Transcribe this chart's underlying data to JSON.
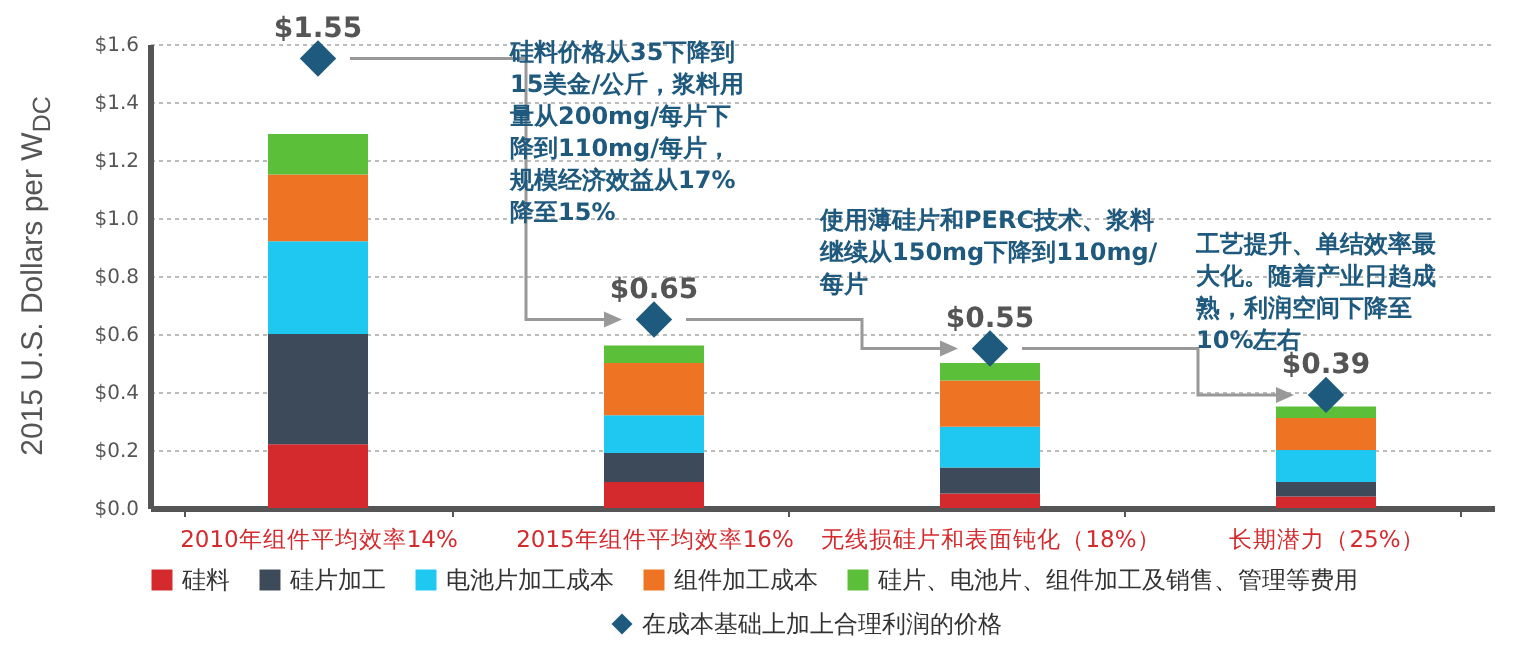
{
  "chart_data": {
    "type": "bar",
    "stacked": true,
    "ylabel": "2015 U.S. Dollars per W$_{DC}$",
    "categories": [
      "2010年组件平均效率14%",
      "2015年组件平均效率16%",
      "无线损硅片和表面钝化（18%）",
      "长期潜力（25%）"
    ],
    "series": [
      {
        "name": "硅料",
        "color": "#d42a2e",
        "values": [
          0.22,
          0.09,
          0.05,
          0.04
        ]
      },
      {
        "name": "硅片加工",
        "color": "#3d4a5a",
        "values": [
          0.38,
          0.1,
          0.09,
          0.05
        ]
      },
      {
        "name": "电池片加工成本",
        "color": "#1ec8f0",
        "values": [
          0.32,
          0.13,
          0.14,
          0.11
        ]
      },
      {
        "name": "组件加工成本",
        "color": "#ee7424",
        "values": [
          0.23,
          0.18,
          0.16,
          0.11
        ]
      },
      {
        "name": "硅片、电池片、组件加工及销售、管理等费用",
        "color": "#5bbf3a",
        "values": [
          0.14,
          0.06,
          0.06,
          0.04
        ]
      },
      {
        "name": "在成本基础上加上合理利润的价格",
        "type": "scatter",
        "marker": "diamond",
        "color": "#1e5a7e",
        "x": [
          "2010年组件平均效率14%",
          "2015年组件平均效率16%",
          "无线损硅片和表面钝化（18%）",
          "长期潜力（25%）"
        ],
        "values": [
          1.55,
          0.65,
          0.55,
          0.39
        ],
        "value_labels": [
          "$1.55",
          "$0.65",
          "$0.55",
          "$0.39"
        ]
      }
    ],
    "ylim": [
      0,
      1.6
    ],
    "yticks": [
      {
        "value": 0,
        "label": "$0.0"
      },
      {
        "value": 0.2,
        "label": "$0.2"
      },
      {
        "value": 0.4,
        "label": "$0.4"
      },
      {
        "value": 0.6,
        "label": "$0.6"
      },
      {
        "value": 0.8,
        "label": "$0.8"
      },
      {
        "value": 1.0,
        "label": "$1.0"
      },
      {
        "value": 1.2,
        "label": "$1.2"
      },
      {
        "value": 1.4,
        "label": "$1.4"
      },
      {
        "value": 1.6,
        "label": "$1.6"
      }
    ],
    "grid": "y",
    "legend": "bottom",
    "annotations": [
      "硅料价格从35下降到15美金/公斤，浆料用量从200mg/每片下降到110mg/每片，规模经济效益从17%降至15%",
      "使用薄硅片和PERC技术、浆料继续从150mg下降到110mg/每片",
      "工艺提升、单结效率最大化。随着产业日趋成熟，利润空间下降至10%左右"
    ]
  }
}
